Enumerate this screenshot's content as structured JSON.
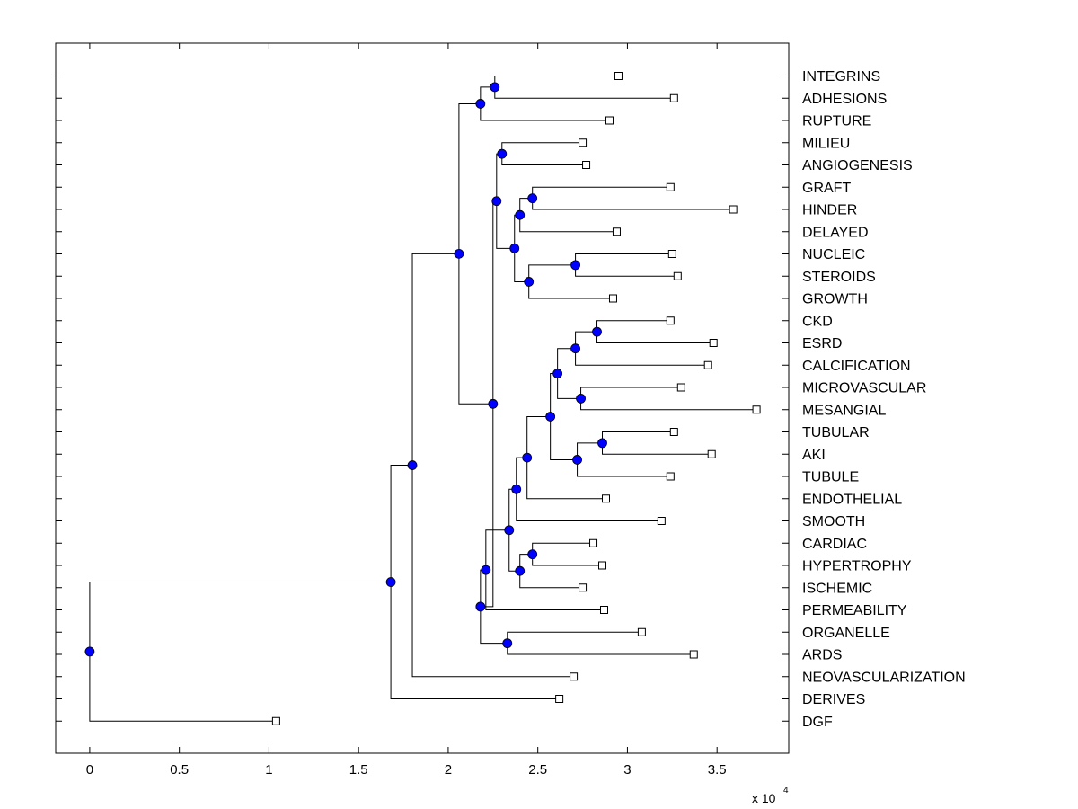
{
  "chart_data": {
    "type": "dendrogram",
    "orientation": "horizontal",
    "xlim": [
      -0.19,
      3.9
    ],
    "xticks": [
      0,
      0.5,
      1,
      1.5,
      2,
      2.5,
      3,
      3.5
    ],
    "xtick_labels": [
      "0",
      "0.5",
      "1",
      "1.5",
      "2",
      "2.5",
      "3",
      "3.5"
    ],
    "x_multiplier_label": "x 10",
    "x_multiplier_exponent": "4",
    "leaf_marker": "open-square",
    "node_marker": "filled-circle",
    "node_color": "#0000ff",
    "line_color": "#000000",
    "leaves": [
      {
        "label": "INTEGRINS",
        "x": 2.95
      },
      {
        "label": "ADHESIONS",
        "x": 3.26
      },
      {
        "label": "RUPTURE",
        "x": 2.9
      },
      {
        "label": "MILIEU",
        "x": 2.75
      },
      {
        "label": "ANGIOGENESIS",
        "x": 2.77
      },
      {
        "label": "GRAFT",
        "x": 3.24
      },
      {
        "label": "HINDER",
        "x": 3.59
      },
      {
        "label": "DELAYED",
        "x": 2.94
      },
      {
        "label": "NUCLEIC",
        "x": 3.25
      },
      {
        "label": "STEROIDS",
        "x": 3.28
      },
      {
        "label": "GROWTH",
        "x": 2.92
      },
      {
        "label": "CKD",
        "x": 3.24
      },
      {
        "label": "ESRD",
        "x": 3.48
      },
      {
        "label": "CALCIFICATION",
        "x": 3.45
      },
      {
        "label": "MICROVASCULAR",
        "x": 3.3
      },
      {
        "label": "MESANGIAL",
        "x": 3.72
      },
      {
        "label": "TUBULAR",
        "x": 3.26
      },
      {
        "label": "AKI",
        "x": 3.47
      },
      {
        "label": "TUBULE",
        "x": 3.24
      },
      {
        "label": "ENDOTHELIAL",
        "x": 2.88
      },
      {
        "label": "SMOOTH",
        "x": 3.19
      },
      {
        "label": "CARDIAC",
        "x": 2.81
      },
      {
        "label": "HYPERTROPHY",
        "x": 2.86
      },
      {
        "label": "ISCHEMIC",
        "x": 2.75
      },
      {
        "label": "PERMEABILITY",
        "x": 2.87
      },
      {
        "label": "ORGANELLE",
        "x": 3.08
      },
      {
        "label": "ARDS",
        "x": 3.37
      },
      {
        "label": "NEOVASCULARIZATION",
        "x": 2.7
      },
      {
        "label": "DERIVES",
        "x": 2.62
      },
      {
        "label": "DGF",
        "x": 1.04
      }
    ],
    "clusters": [
      {
        "id": "a1",
        "children": [
          "INTEGRINS",
          "ADHESIONS"
        ],
        "x": 2.26
      },
      {
        "id": "a2",
        "children": [
          "a1",
          "RUPTURE"
        ],
        "x": 2.18
      },
      {
        "id": "b1",
        "children": [
          "MILIEU",
          "ANGIOGENESIS"
        ],
        "x": 2.3
      },
      {
        "id": "c1",
        "children": [
          "GRAFT",
          "HINDER"
        ],
        "x": 2.47
      },
      {
        "id": "c2",
        "children": [
          "c1",
          "DELAYED"
        ],
        "x": 2.4
      },
      {
        "id": "d1",
        "children": [
          "NUCLEIC",
          "STEROIDS"
        ],
        "x": 2.71
      },
      {
        "id": "d2",
        "children": [
          "d1",
          "GROWTH"
        ],
        "x": 2.45
      },
      {
        "id": "cd",
        "children": [
          "c2",
          "d2"
        ],
        "x": 2.37
      },
      {
        "id": "bcd",
        "children": [
          "b1",
          "cd"
        ],
        "x": 2.27
      },
      {
        "id": "e1",
        "children": [
          "CKD",
          "ESRD"
        ],
        "x": 2.83
      },
      {
        "id": "e2",
        "children": [
          "e1",
          "CALCIFICATION"
        ],
        "x": 2.71
      },
      {
        "id": "f1",
        "children": [
          "MICROVASCULAR",
          "MESANGIAL"
        ],
        "x": 2.74
      },
      {
        "id": "ef",
        "children": [
          "e2",
          "f1"
        ],
        "x": 2.61
      },
      {
        "id": "g1",
        "children": [
          "TUBULAR",
          "AKI"
        ],
        "x": 2.86
      },
      {
        "id": "g2",
        "children": [
          "g1",
          "TUBULE"
        ],
        "x": 2.72
      },
      {
        "id": "efg",
        "children": [
          "ef",
          "g2"
        ],
        "x": 2.57
      },
      {
        "id": "h1",
        "children": [
          "efg",
          "ENDOTHELIAL"
        ],
        "x": 2.44
      },
      {
        "id": "h2",
        "children": [
          "h1",
          "SMOOTH"
        ],
        "x": 2.38
      },
      {
        "id": "i1",
        "children": [
          "CARDIAC",
          "HYPERTROPHY"
        ],
        "x": 2.47
      },
      {
        "id": "i2",
        "children": [
          "i1",
          "ISCHEMIC"
        ],
        "x": 2.4
      },
      {
        "id": "hi",
        "children": [
          "h2",
          "i2"
        ],
        "x": 2.34
      },
      {
        "id": "j1",
        "children": [
          "hi",
          "PERMEABILITY"
        ],
        "x": 2.21
      },
      {
        "id": "k1",
        "children": [
          "ORGANELLE",
          "ARDS"
        ],
        "x": 2.33
      },
      {
        "id": "jk",
        "children": [
          "j1",
          "k1"
        ],
        "x": 2.18
      },
      {
        "id": "m1",
        "children": [
          "bcd",
          "jk"
        ],
        "x": 2.25
      },
      {
        "id": "am",
        "children": [
          "a2",
          "m1"
        ],
        "x": 2.06
      },
      {
        "id": "n1",
        "children": [
          "am",
          "NEOVASCULARIZATION"
        ],
        "x": 1.8
      },
      {
        "id": "p1",
        "children": [
          "n1",
          "DERIVES"
        ],
        "x": 1.68
      },
      {
        "id": "root",
        "children": [
          "p1",
          "DGF"
        ],
        "x": 0
      }
    ]
  }
}
